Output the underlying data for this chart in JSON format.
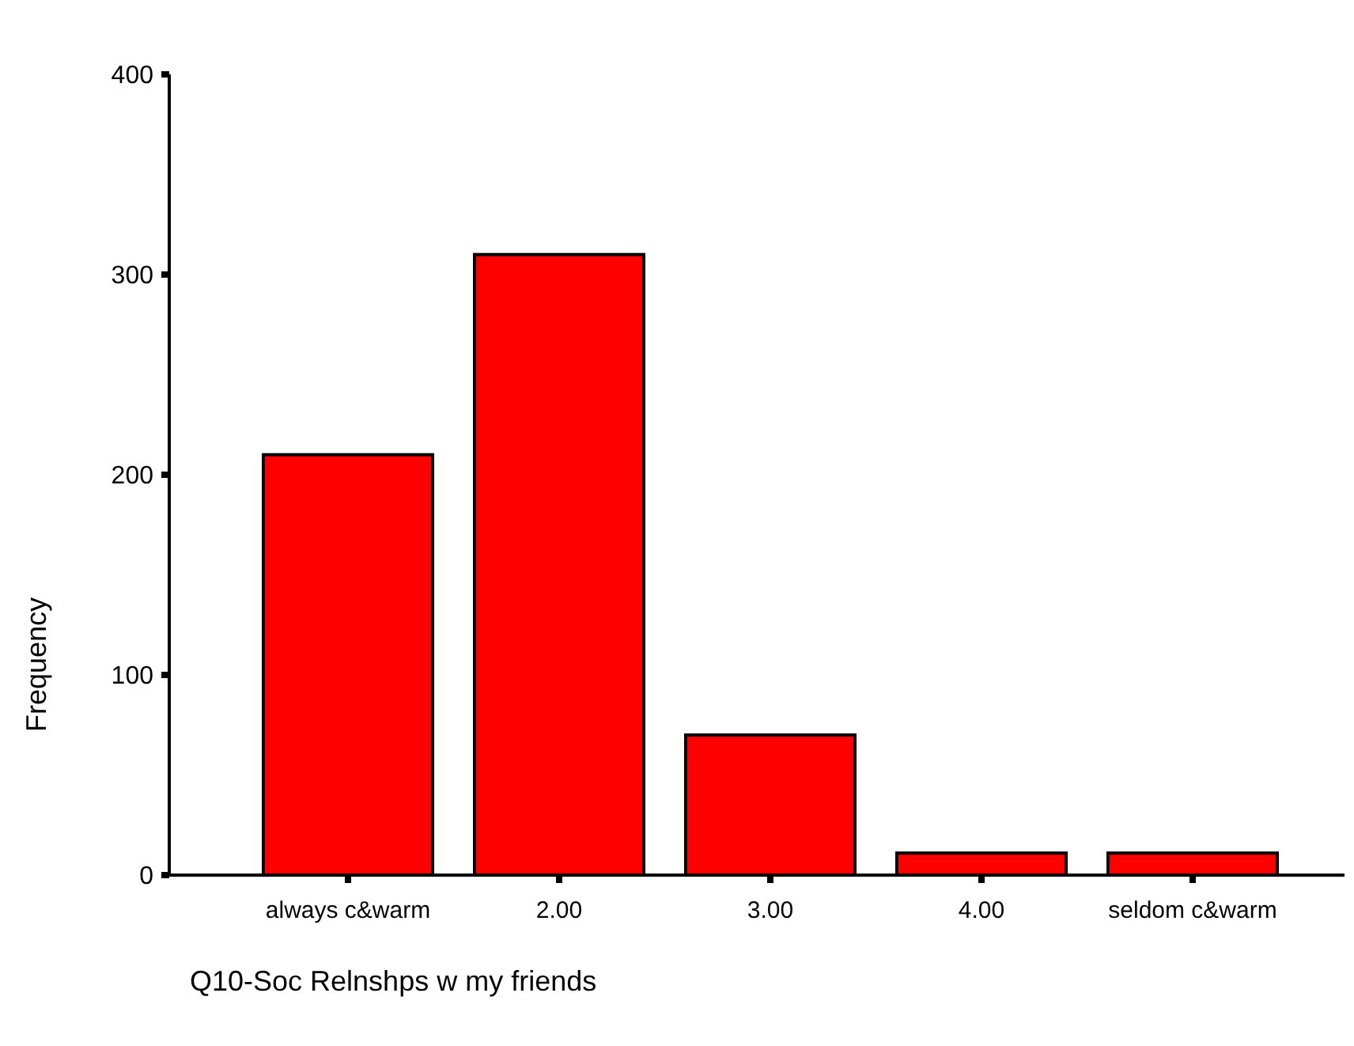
{
  "chart_data": {
    "type": "bar",
    "xlabel": "Q10-Soc Relnshps w my friends",
    "ylabel": "Frequency",
    "categories": [
      "always c&warm",
      "2.00",
      "3.00",
      "4.00",
      "seldom c&warm"
    ],
    "values": [
      210,
      310,
      70,
      11,
      11
    ],
    "color": "#ff0000",
    "ylim": [
      0,
      400
    ],
    "yticks": [
      0,
      100,
      200,
      300,
      400
    ],
    "grid": false
  }
}
